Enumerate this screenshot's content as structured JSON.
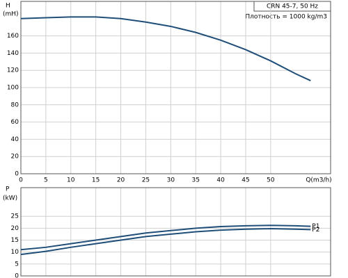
{
  "chart_data": [
    {
      "type": "line",
      "title": "CRN 45-7, 50 Hz",
      "annotation": "Плотность = 1000 kg/m3",
      "ylabel": "H",
      "yunit": "(mH)",
      "xlabel": "Q(m3/h)",
      "x": [
        0,
        5,
        10,
        15,
        20,
        25,
        30,
        35,
        40,
        45,
        50,
        55,
        58
      ],
      "series": [
        {
          "color": "#1f4e79",
          "values": [
            180,
            181,
            182,
            182,
            180,
            176,
            171,
            164,
            155,
            144,
            131,
            116,
            108
          ]
        }
      ],
      "xlim": [
        0,
        62
      ],
      "xticks": [
        0,
        5,
        10,
        15,
        20,
        25,
        30,
        35,
        40,
        45,
        50
      ],
      "ylim": [
        0,
        200
      ],
      "yticks": [
        0,
        20,
        40,
        60,
        80,
        100,
        120,
        140,
        160
      ],
      "grid": true
    },
    {
      "type": "line",
      "ylabel": "P",
      "yunit": "(kW)",
      "x": [
        0,
        5,
        10,
        15,
        20,
        25,
        30,
        35,
        40,
        45,
        50,
        55,
        58
      ],
      "series": [
        {
          "name": "P1",
          "color": "#1f4e79",
          "values": [
            11,
            12,
            13.5,
            15,
            16.5,
            18,
            19,
            20,
            20.7,
            21,
            21.2,
            21,
            20.8
          ]
        },
        {
          "name": "P2",
          "color": "#1f4e79",
          "values": [
            9,
            10.3,
            12,
            13.5,
            15,
            16.5,
            17.5,
            18.5,
            19.2,
            19.6,
            19.8,
            19.6,
            19.4
          ]
        }
      ],
      "xlim": [
        0,
        62
      ],
      "ylim": [
        0,
        37
      ],
      "yticks": [
        0,
        5,
        10,
        15,
        20,
        25
      ],
      "grid": true
    }
  ]
}
